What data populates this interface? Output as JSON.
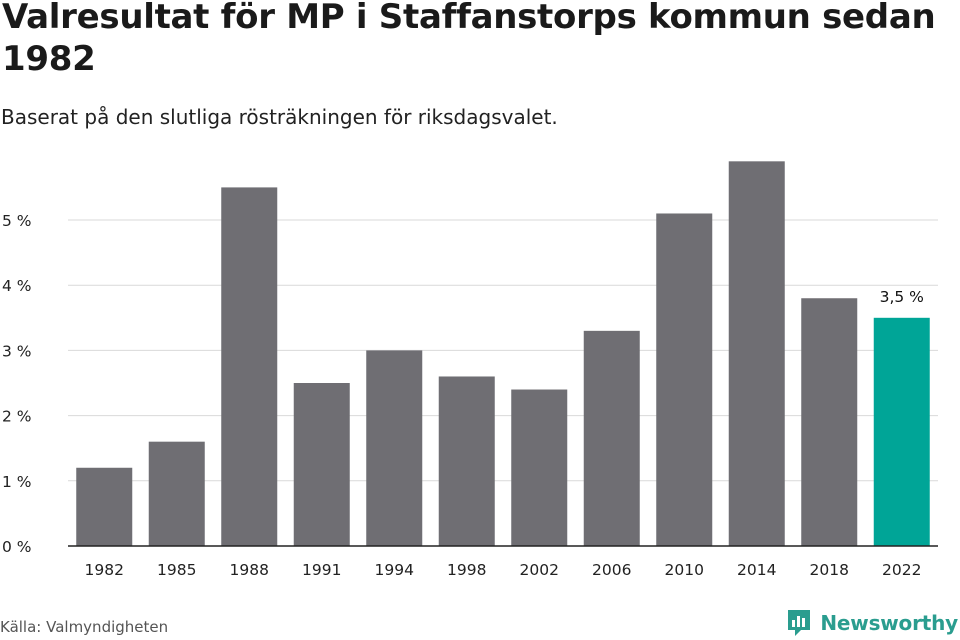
{
  "header": {
    "title": "Valresultat för MP i Staffanstorps kommun sedan 1982",
    "subtitle": "Baserat på den slutliga rösträkningen för riksdagsvalet."
  },
  "footer": {
    "source": "Källa: Valmyndigheten",
    "brand": "Newsworthy"
  },
  "colors": {
    "bar": "#6f6e73",
    "highlight": "#00a597",
    "grid": "#d9d9d9",
    "axis": "#222222",
    "brand": "#2a9d8f"
  },
  "chart_data": {
    "type": "bar",
    "categories": [
      "1982",
      "1985",
      "1988",
      "1991",
      "1994",
      "1998",
      "2002",
      "2006",
      "2010",
      "2014",
      "2018",
      "2022"
    ],
    "values": [
      1.2,
      1.6,
      5.5,
      2.5,
      3.0,
      2.6,
      2.4,
      3.3,
      5.1,
      5.9,
      3.8,
      3.5
    ],
    "ylim": [
      0,
      6
    ],
    "yticks": [
      0,
      1,
      2,
      3,
      4,
      5
    ],
    "ytick_labels": [
      "0 %",
      "1 %",
      "2 %",
      "3 %",
      "4 %",
      "5 %"
    ],
    "highlight_index": 11,
    "annotation": "3,5 %",
    "grid": true
  }
}
